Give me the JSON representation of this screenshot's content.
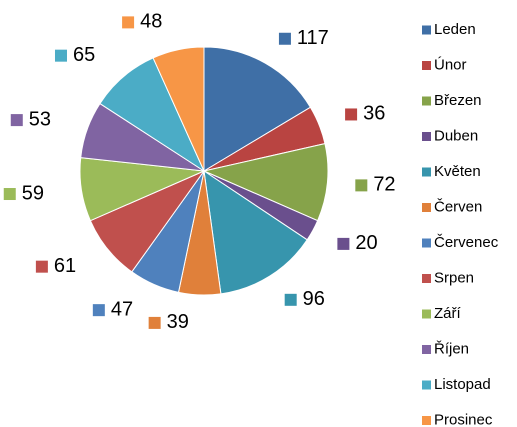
{
  "chart_data": {
    "type": "pie",
    "categories": [
      "Leden",
      "Únor",
      "Březen",
      "Duben",
      "Květen",
      "Červen",
      "Červenec",
      "Srpen",
      "Září",
      "Říjen",
      "Listopad",
      "Prosinec"
    ],
    "values": [
      117,
      36,
      72,
      20,
      96,
      39,
      47,
      61,
      59,
      53,
      65,
      48
    ],
    "colors": [
      "#3F6FA6",
      "#B94441",
      "#86A34A",
      "#6A4F8D",
      "#3795AD",
      "#E0803A",
      "#4F81BD",
      "#C0504D",
      "#9BBB59",
      "#8064A2",
      "#4BACC6",
      "#F79646"
    ],
    "legend": "right"
  }
}
